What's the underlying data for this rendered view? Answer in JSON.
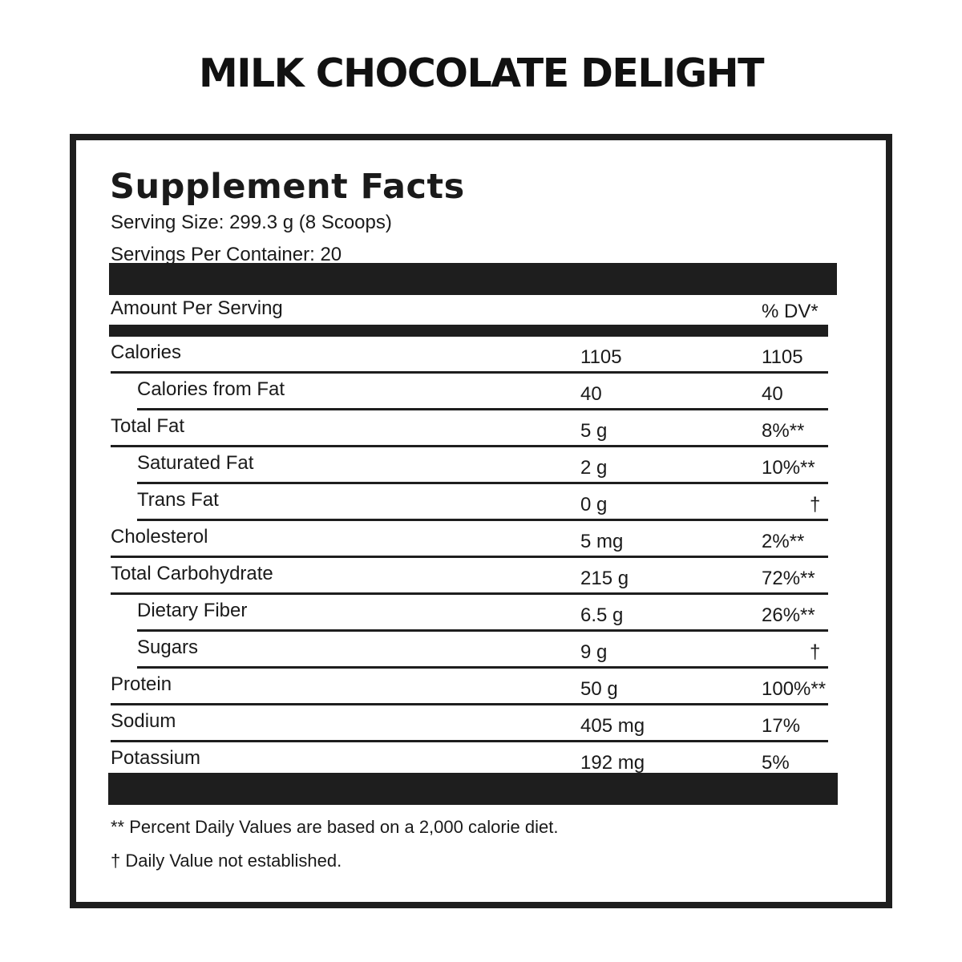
{
  "product_title": "MILK CHOCOLATE DELIGHT",
  "facts_heading": "Supplement Facts",
  "serving_size": "Serving Size: 299.3 g (8 Scoops)",
  "servings_per_container": "Servings Per Container: 20",
  "header": {
    "amount_per_serving": "Amount Per Serving",
    "dv": "% DV*"
  },
  "rows": [
    {
      "nutrient": "Calories",
      "amount": "1105",
      "dv": "1105"
    },
    {
      "nutrient": "Calories from Fat",
      "amount": "40",
      "dv": "40"
    },
    {
      "nutrient": "Total Fat",
      "amount": "5 g",
      "dv": "8%**"
    },
    {
      "nutrient": "Saturated Fat",
      "amount": "2 g",
      "dv": "10%**"
    },
    {
      "nutrient": "Trans Fat",
      "amount": "0 g",
      "dv": "†"
    },
    {
      "nutrient": "Cholesterol",
      "amount": "5 mg",
      "dv": "2%**"
    },
    {
      "nutrient": "Total Carbohydrate",
      "amount": "215 g",
      "dv": "72%**"
    },
    {
      "nutrient": "Dietary Fiber",
      "amount": "6.5 g",
      "dv": "26%**"
    },
    {
      "nutrient": "Sugars",
      "amount": "9 g",
      "dv": "†"
    },
    {
      "nutrient": "Protein",
      "amount": "50 g",
      "dv": "100%**"
    },
    {
      "nutrient": "Sodium",
      "amount": "405 mg",
      "dv": "17%"
    },
    {
      "nutrient": "Potassium",
      "amount": "192 mg",
      "dv": "5%"
    }
  ],
  "footnotes": {
    "percent_dv": "** Percent Daily Values are based on a 2,000 calorie diet.",
    "not_established": "† Daily Value not established."
  },
  "colors": {
    "bar": "#1e1e1e",
    "text": "#1a1a1a"
  }
}
